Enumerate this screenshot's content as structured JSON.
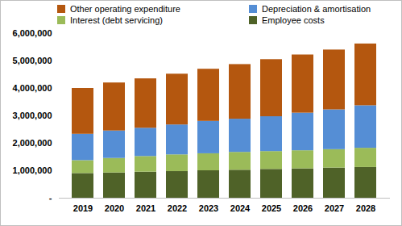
{
  "chart_data": {
    "type": "bar",
    "stacked": true,
    "legend": "top",
    "grid": false,
    "categories": [
      "2019",
      "2020",
      "2021",
      "2022",
      "2023",
      "2024",
      "2025",
      "2026",
      "2027",
      "2028"
    ],
    "ylim": [
      0,
      6000000
    ],
    "yticks": [
      {
        "value": 0,
        "label": "-"
      },
      {
        "value": 1000000,
        "label": "1,000,000"
      },
      {
        "value": 2000000,
        "label": "2,000,000"
      },
      {
        "value": 3000000,
        "label": "3,000,000"
      },
      {
        "value": 4000000,
        "label": "4,000,000"
      },
      {
        "value": 5000000,
        "label": "5,000,000"
      },
      {
        "value": 6000000,
        "label": "6,000,000"
      }
    ],
    "series": [
      {
        "name": "Employee costs",
        "color": "#4f6228",
        "values": [
          900000,
          920000,
          950000,
          970000,
          1000000,
          1020000,
          1050000,
          1070000,
          1100000,
          1120000
        ]
      },
      {
        "name": "Interest (debt servicing)",
        "color": "#9bbb59",
        "values": [
          470000,
          530000,
          570000,
          610000,
          620000,
          650000,
          650000,
          660000,
          670000,
          700000
        ]
      },
      {
        "name": "Depreciation & amortisation",
        "color": "#558ed5",
        "values": [
          960000,
          1000000,
          1030000,
          1090000,
          1180000,
          1210000,
          1270000,
          1370000,
          1450000,
          1550000
        ]
      },
      {
        "name": "Other operating expenditure",
        "color": "#b4570f",
        "values": [
          1670000,
          1750000,
          1800000,
          1850000,
          1900000,
          1990000,
          2080000,
          2120000,
          2180000,
          2250000
        ]
      }
    ]
  }
}
